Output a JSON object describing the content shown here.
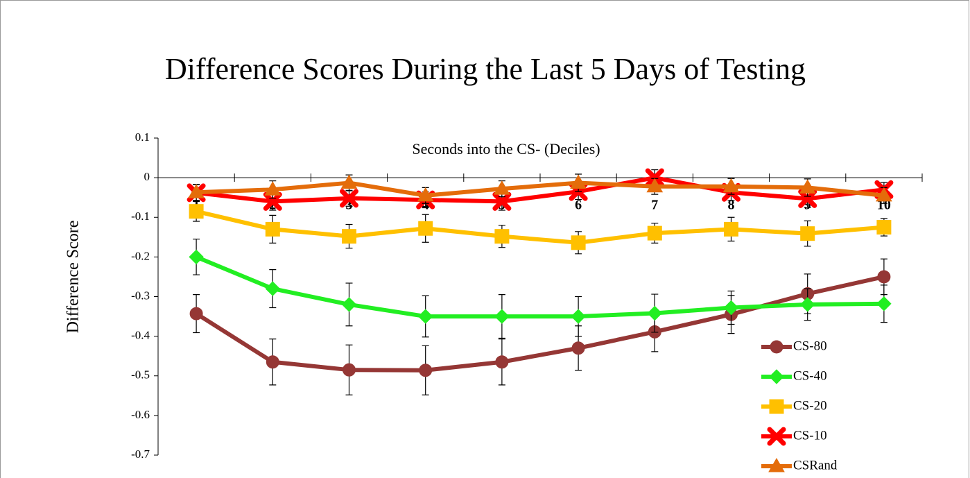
{
  "chart_data": {
    "type": "line",
    "title": "Difference Scores During the Last 5 Days of Testing",
    "x_label": "Seconds into the CS- (Deciles)",
    "y_label": "Difference Score",
    "categories": [
      "1",
      "2",
      "3",
      "4",
      "5",
      "6",
      "7",
      "8",
      "9",
      "10"
    ],
    "ylim": [
      -0.7,
      0.1
    ],
    "yticks": [
      0.1,
      0,
      -0.1,
      -0.2,
      -0.3,
      -0.4,
      -0.5,
      -0.6,
      -0.7
    ],
    "legend": "bottom-right",
    "series": [
      {
        "name": "CS-80",
        "color": "#953735",
        "marker": "circle",
        "values": [
          -0.343,
          -0.465,
          -0.485,
          -0.486,
          -0.465,
          -0.43,
          -0.389,
          -0.345,
          -0.293,
          -0.25
        ],
        "errors": [
          0.048,
          0.058,
          0.063,
          0.062,
          0.058,
          0.056,
          0.05,
          0.048,
          0.05,
          0.045
        ]
      },
      {
        "name": "CS-40",
        "color": "#22ee22",
        "marker": "diamond",
        "values": [
          -0.2,
          -0.28,
          -0.32,
          -0.35,
          -0.35,
          -0.35,
          -0.342,
          -0.328,
          -0.32,
          -0.318
        ],
        "errors": [
          0.045,
          0.048,
          0.054,
          0.052,
          0.055,
          0.05,
          0.048,
          0.042,
          0.04,
          0.047
        ]
      },
      {
        "name": "CS-20",
        "color": "#ffc000",
        "marker": "square",
        "values": [
          -0.085,
          -0.13,
          -0.148,
          -0.128,
          -0.148,
          -0.164,
          -0.14,
          -0.13,
          -0.141,
          -0.125
        ],
        "errors": [
          0.025,
          0.035,
          0.03,
          0.035,
          0.028,
          0.028,
          0.025,
          0.03,
          0.032,
          0.022
        ]
      },
      {
        "name": "CS-10",
        "color": "#ff0000",
        "marker": "x",
        "values": [
          -0.038,
          -0.06,
          -0.052,
          -0.056,
          -0.06,
          -0.035,
          0,
          -0.037,
          -0.053,
          -0.03
        ],
        "errors": [
          0.02,
          0.022,
          0.02,
          0.02,
          0.022,
          0.02,
          0.02,
          0.02,
          0.022,
          0.018
        ]
      },
      {
        "name": "CSRand",
        "color": "#e46c0a",
        "marker": "triangle",
        "values": [
          -0.037,
          -0.03,
          -0.013,
          -0.045,
          -0.028,
          -0.013,
          -0.022,
          -0.022,
          -0.025,
          -0.045
        ],
        "errors": [
          0.02,
          0.022,
          0.02,
          0.02,
          0.02,
          0.022,
          0.02,
          0.02,
          0.022,
          0.02
        ]
      }
    ]
  }
}
